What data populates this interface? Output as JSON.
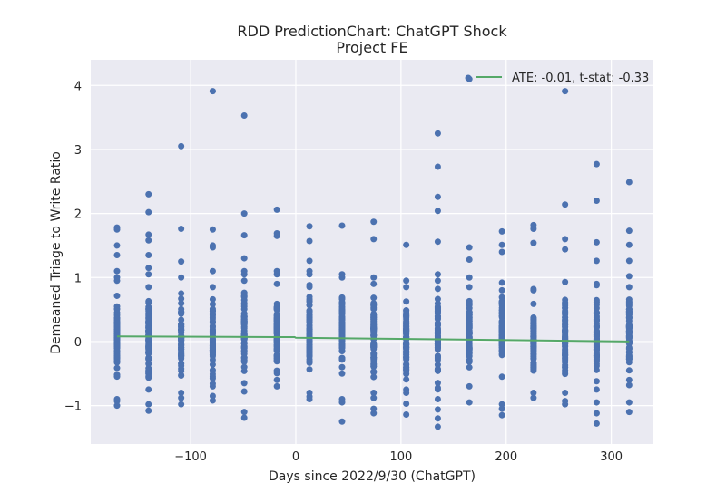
{
  "chart_data": {
    "type": "scatter",
    "title": "RDD PredictionChart: ChatGPT Shock",
    "subtitle": "Project FE",
    "xlabel": "Days since 2022/9/30 (ChatGPT)",
    "ylabel": "Demeaned Triage to Write Ratio",
    "xlim": [
      -195,
      340
    ],
    "ylim": [
      -1.6,
      4.4
    ],
    "xticks": [
      -100,
      0,
      100,
      200,
      300
    ],
    "yticks": [
      -1,
      0,
      1,
      2,
      3,
      4
    ],
    "xtick_labels": [
      "−100",
      "0",
      "100",
      "200",
      "300"
    ],
    "ytick_labels": [
      "−1",
      "0",
      "1",
      "2",
      "3",
      "4"
    ],
    "grid": true,
    "legend_position": "top-right",
    "legend_label": "ATE: -0.01, t-stat: -0.33",
    "background": "#eaeaf2",
    "marker_color": "#4c72b0",
    "line_color": "#55a868",
    "scatter_columns": [
      {
        "x": -170,
        "outliers": [
          1.78,
          1.75,
          1.5,
          1.35,
          1.1,
          1.0,
          -0.93,
          -1.0
        ],
        "range": [
          -0.9,
          0.95
        ]
      },
      {
        "x": -140,
        "outliers": [
          2.3,
          2.02,
          1.67,
          1.58,
          1.35,
          1.15,
          1.05,
          -0.98,
          -1.08
        ],
        "range": [
          -0.75,
          0.85
        ]
      },
      {
        "x": -109,
        "outliers": [
          3.05,
          1.76,
          1.25,
          1.0,
          -0.88,
          -0.98
        ],
        "range": [
          -0.8,
          0.75
        ]
      },
      {
        "x": -79,
        "outliers": [
          3.91,
          1.75,
          1.5,
          1.47,
          1.1,
          -0.85,
          -0.92
        ],
        "range": [
          -0.7,
          0.85
        ]
      },
      {
        "x": -49,
        "outliers": [
          3.53,
          2.0,
          1.66,
          1.3,
          1.1,
          1.05,
          -0.78,
          -1.1,
          -1.19
        ],
        "range": [
          -0.65,
          0.95
        ]
      },
      {
        "x": -18,
        "outliers": [
          2.06,
          1.69,
          1.65,
          1.1,
          1.05,
          -0.7
        ],
        "range": [
          -0.6,
          0.9
        ]
      },
      {
        "x": 13,
        "outliers": [
          1.8,
          1.57,
          1.26,
          1.1,
          -0.86,
          -0.9
        ],
        "range": [
          -0.8,
          1.05
        ]
      },
      {
        "x": 44,
        "outliers": [
          1.81,
          1.05,
          -0.9,
          -0.95,
          -1.25
        ],
        "range": [
          -0.5,
          1.0
        ]
      },
      {
        "x": 74,
        "outliers": [
          1.87,
          1.6,
          1.0,
          -0.88,
          -1.05,
          -1.12
        ],
        "range": [
          -0.8,
          0.9
        ]
      },
      {
        "x": 105,
        "outliers": [
          1.51,
          0.95,
          -0.8,
          -0.97,
          -1.14
        ],
        "range": [
          -0.75,
          0.85
        ]
      },
      {
        "x": 135,
        "outliers": [
          3.25,
          2.73,
          2.26,
          2.04,
          1.56,
          1.05,
          -1.06,
          -1.2,
          -1.33
        ],
        "range": [
          -0.9,
          0.95
        ]
      },
      {
        "x": 165,
        "outliers": [
          4.1,
          1.47,
          1.28,
          1.0,
          -0.95
        ],
        "range": [
          -0.7,
          0.85
        ]
      },
      {
        "x": 196,
        "outliers": [
          1.72,
          1.51,
          1.4,
          0.92,
          -0.98,
          -1.05,
          -1.15
        ],
        "range": [
          -0.55,
          0.8
        ]
      },
      {
        "x": 226,
        "outliers": [
          1.82,
          1.76,
          1.54,
          0.82,
          -0.88
        ],
        "range": [
          -0.8,
          0.8
        ]
      },
      {
        "x": 256,
        "outliers": [
          3.91,
          2.14,
          1.6,
          1.44,
          -0.93,
          -0.98
        ],
        "range": [
          -0.8,
          0.93
        ]
      },
      {
        "x": 286,
        "outliers": [
          2.77,
          2.2,
          1.55,
          1.26,
          0.9,
          -0.95,
          -1.12,
          -1.28
        ],
        "range": [
          -0.75,
          0.88
        ]
      },
      {
        "x": 317,
        "outliers": [
          2.49,
          1.73,
          1.51,
          1.26,
          1.02,
          -0.68,
          -0.95,
          -1.1
        ],
        "range": [
          -0.6,
          0.85
        ]
      }
    ],
    "fit_line": [
      {
        "x": -170,
        "y": 0.08
      },
      {
        "x": -18,
        "y": 0.07
      },
      {
        "x": -1,
        "y": 0.07
      },
      {
        "x": 0,
        "y": 0.06
      },
      {
        "x": 317,
        "y": 0.0
      }
    ]
  }
}
